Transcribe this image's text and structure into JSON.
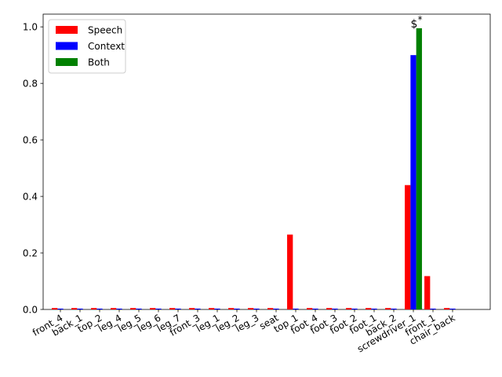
{
  "chart_data": {
    "type": "bar",
    "categories": [
      "front_4",
      "back_1",
      "top_2",
      "leg_4",
      "leg_5",
      "leg_6",
      "leg_7",
      "front_3",
      "leg_1",
      "leg_2",
      "leg_3",
      "seat",
      "top_1",
      "foot_4",
      "foot_3",
      "foot_2",
      "foot_1",
      "back_2",
      "screwdriver_1",
      "front_1",
      "chair_back"
    ],
    "series": [
      {
        "name": "Speech",
        "color": "#ff0000",
        "values": [
          0.005,
          0.005,
          0.005,
          0.005,
          0.005,
          0.005,
          0.005,
          0.005,
          0.005,
          0.005,
          0.005,
          0.005,
          0.265,
          0.005,
          0.005,
          0.005,
          0.005,
          0.005,
          0.44,
          0.118,
          0.005
        ]
      },
      {
        "name": "Context",
        "color": "#0000ff",
        "values": [
          0.003,
          0.003,
          0.003,
          0.003,
          0.003,
          0.003,
          0.003,
          0.003,
          0.003,
          0.003,
          0.003,
          0.003,
          0.003,
          0.003,
          0.003,
          0.003,
          0.003,
          0.003,
          0.9,
          0.003,
          0.003
        ]
      },
      {
        "name": "Both",
        "color": "#008000",
        "values": [
          0.0,
          0.0,
          0.0,
          0.0,
          0.0,
          0.0,
          0.0,
          0.0,
          0.0,
          0.0,
          0.0,
          0.0,
          0.0,
          0.0,
          0.0,
          0.0,
          0.0,
          0.0,
          0.995,
          0.0,
          0.0
        ]
      }
    ],
    "ylim": [
      0,
      1.045
    ],
    "yticks": [
      0.0,
      0.2,
      0.4,
      0.6,
      0.8,
      1.0
    ],
    "ytick_labels": [
      "0.0",
      "0.2",
      "0.4",
      "0.6",
      "0.8",
      "1.0"
    ],
    "legend_location": "top-left",
    "grid": false,
    "annotations": [
      {
        "text": "$^*$",
        "category": "screwdriver_1",
        "y": 1.0
      }
    ]
  }
}
